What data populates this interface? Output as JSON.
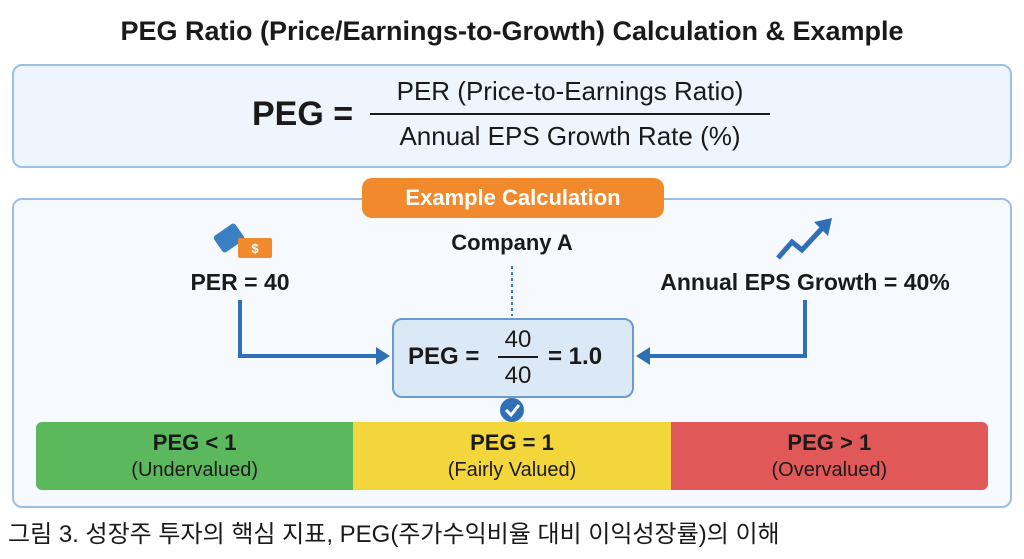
{
  "title": "PEG Ratio (Price/Earnings-to-Growth) Calculation & Example",
  "formula": {
    "lhs": "PEG =",
    "numerator": "PER (Price-to-Earnings Ratio)",
    "denominator": "Annual EPS Growth Rate (%)"
  },
  "example": {
    "label": "Example Calculation",
    "company": "Company A",
    "per": "PER = 40",
    "growth": "Annual EPS Growth = 40%",
    "calc": {
      "lhs": "PEG =",
      "numerator": "40",
      "denominator": "40",
      "result": "= 1.0"
    }
  },
  "bands": [
    {
      "label": "PEG < 1",
      "note": "(Undervalued)"
    },
    {
      "label": "PEG = 1",
      "note": "(Fairly Valued)"
    },
    {
      "label": "PEG > 1",
      "note": "(Overvalued)"
    }
  ],
  "caption": "그림 3. 성장주 투자의 핵심 지표, PEG(주가수익비율 대비 이익성장률)의 이해"
}
